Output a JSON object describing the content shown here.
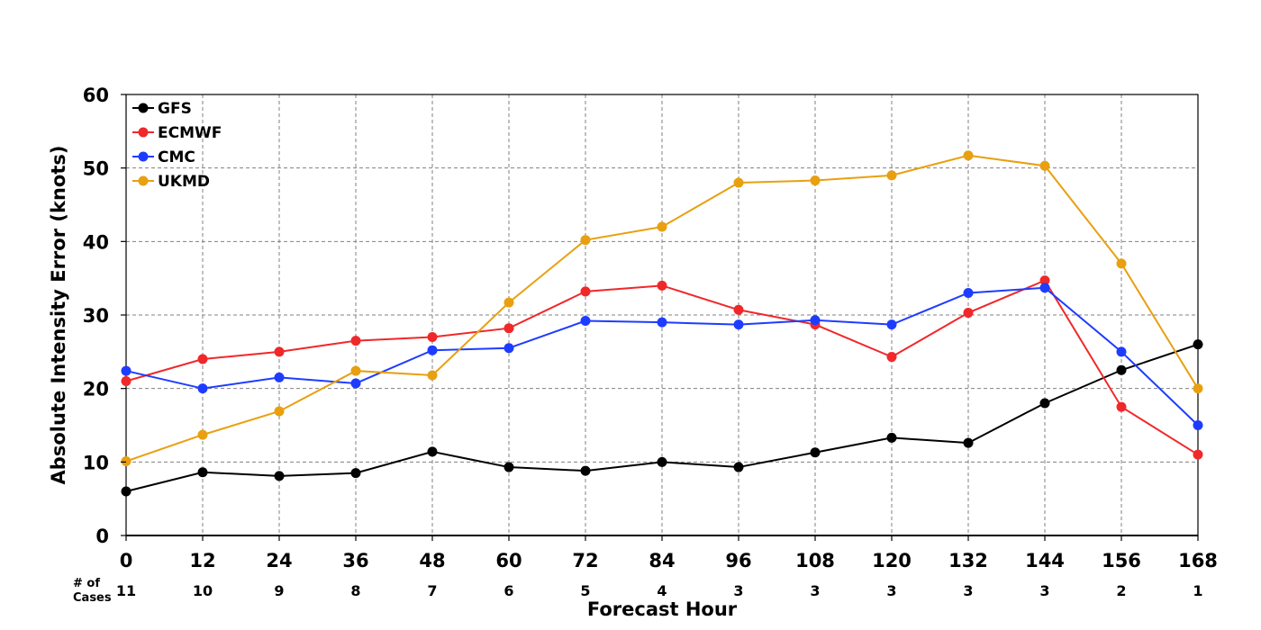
{
  "chart_data": {
    "type": "line",
    "title": "",
    "xlabel": "Forecast Hour",
    "ylabel": "Absolute Intensity Error (knots)",
    "xlim": [
      0,
      168
    ],
    "ylim": [
      0,
      60
    ],
    "x": [
      0,
      12,
      24,
      36,
      48,
      60,
      72,
      84,
      96,
      108,
      120,
      132,
      144,
      156,
      168
    ],
    "x_tick_labels": [
      "0",
      "12",
      "24",
      "36",
      "48",
      "60",
      "72",
      "84",
      "96",
      "108",
      "120",
      "132",
      "144",
      "156",
      "168"
    ],
    "y_ticks": [
      0,
      10,
      20,
      30,
      40,
      50,
      60
    ],
    "y_tick_labels": [
      "0",
      "10",
      "20",
      "30",
      "40",
      "50",
      "60"
    ],
    "grid": true,
    "legend_position": "top-left",
    "cases_header_lines": [
      "# of",
      "Cases"
    ],
    "cases": [
      "11",
      "10",
      "9",
      "8",
      "7",
      "6",
      "5",
      "4",
      "3",
      "3",
      "3",
      "3",
      "3",
      "2",
      "1"
    ],
    "series": [
      {
        "name": "GFS",
        "color": "#000000",
        "values": [
          6.0,
          8.6,
          8.1,
          8.5,
          11.4,
          9.3,
          8.8,
          10.0,
          9.3,
          11.3,
          13.3,
          12.6,
          18.0,
          22.5,
          26.0
        ]
      },
      {
        "name": "ECMWF",
        "color": "#f0282a",
        "values": [
          21.0,
          24.0,
          25.0,
          26.5,
          27.0,
          28.2,
          33.2,
          34.0,
          30.7,
          28.7,
          24.3,
          30.3,
          34.7,
          17.5,
          11.0
        ]
      },
      {
        "name": "CMC",
        "color": "#1e3cff",
        "values": [
          22.4,
          20.0,
          21.5,
          20.7,
          25.2,
          25.5,
          29.2,
          29.0,
          28.7,
          29.3,
          28.7,
          33.0,
          33.7,
          25.0,
          15.0
        ]
      },
      {
        "name": "UKMD",
        "color": "#e8a010",
        "values": [
          10.1,
          13.7,
          16.9,
          22.4,
          21.8,
          31.7,
          40.2,
          42.0,
          48.0,
          48.3,
          49.0,
          51.7,
          50.3,
          37.0,
          20.0
        ]
      }
    ]
  }
}
